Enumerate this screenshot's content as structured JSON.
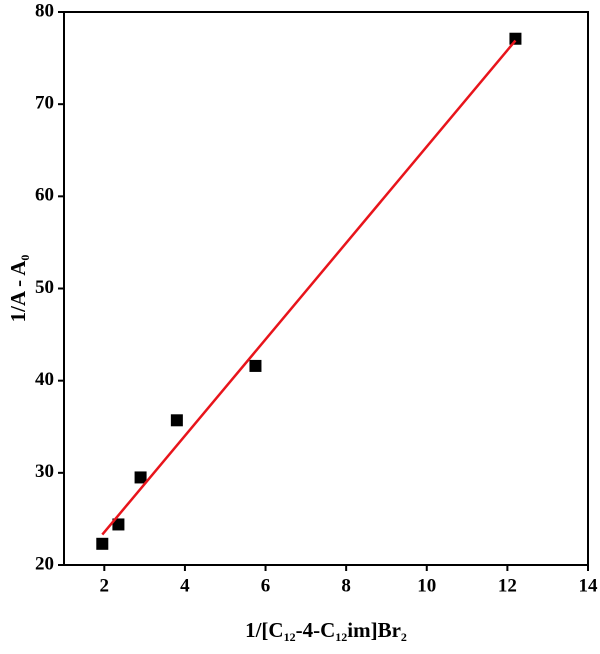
{
  "chart_data": {
    "type": "scatter",
    "xlabel": [
      "1/[C",
      "12",
      "-4-C",
      "12",
      "im]Br",
      "2"
    ],
    "ylabel": [
      "1/A - A",
      "0"
    ],
    "xlim": [
      1,
      14
    ],
    "xticks": [
      2,
      4,
      6,
      8,
      10,
      12,
      14
    ],
    "ylim": [
      20,
      80
    ],
    "yticks": [
      20,
      30,
      40,
      50,
      60,
      70,
      80
    ],
    "series": [
      {
        "mode": "markers",
        "marker": "square",
        "color": "#000000",
        "x": [
          1.95,
          2.35,
          2.9,
          3.8,
          5.75,
          12.2
        ],
        "values": [
          22.3,
          24.4,
          29.5,
          35.7,
          41.6,
          77.1
        ]
      },
      {
        "mode": "line",
        "color": "#e8141b",
        "x": [
          1.95,
          12.2
        ],
        "values": [
          23.3,
          76.9
        ]
      }
    ]
  }
}
